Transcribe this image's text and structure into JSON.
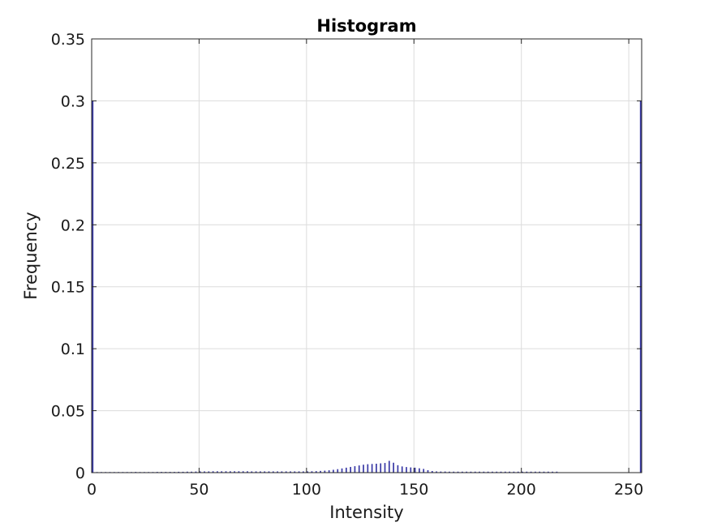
{
  "chart_data": {
    "type": "bar",
    "title": "Histogram",
    "xlabel": "Intensity",
    "ylabel": "Frequency",
    "xlim": [
      0,
      256
    ],
    "ylim": [
      0,
      0.35
    ],
    "xticks": [
      0,
      50,
      100,
      150,
      200,
      250
    ],
    "xtick_labels": [
      "0",
      "50",
      "100",
      "150",
      "200",
      "250"
    ],
    "yticks": [
      0,
      0.05,
      0.1,
      0.15,
      0.2,
      0.25,
      0.3,
      0.35
    ],
    "ytick_labels": [
      "0",
      "0.05",
      "0.1",
      "0.15",
      "0.2",
      "0.25",
      "0.3",
      "0.35"
    ],
    "grid": true,
    "bar_color": "#3a3aa6",
    "x": [
      0,
      2,
      4,
      6,
      8,
      10,
      12,
      14,
      16,
      18,
      20,
      22,
      24,
      26,
      28,
      30,
      32,
      34,
      36,
      38,
      40,
      42,
      44,
      46,
      48,
      50,
      52,
      54,
      56,
      58,
      60,
      62,
      64,
      66,
      68,
      70,
      72,
      74,
      76,
      78,
      80,
      82,
      84,
      86,
      88,
      90,
      92,
      94,
      96,
      98,
      100,
      102,
      104,
      106,
      108,
      110,
      112,
      114,
      116,
      118,
      120,
      122,
      124,
      126,
      128,
      130,
      132,
      134,
      136,
      138,
      140,
      142,
      144,
      146,
      148,
      150,
      152,
      154,
      156,
      158,
      160,
      162,
      164,
      166,
      168,
      170,
      172,
      174,
      176,
      178,
      180,
      182,
      184,
      186,
      188,
      190,
      192,
      194,
      196,
      198,
      200,
      202,
      204,
      206,
      208,
      210,
      212,
      214,
      216,
      255
    ],
    "values": [
      0.3,
      0.0005,
      0.0005,
      0.0005,
      0.0005,
      0.0005,
      0.0005,
      0.0005,
      0.0005,
      0.0005,
      0.0006,
      0.0005,
      0.0005,
      0.0005,
      0.0005,
      0.0006,
      0.0006,
      0.0006,
      0.0006,
      0.0006,
      0.0007,
      0.0007,
      0.0008,
      0.0008,
      0.0009,
      0.001,
      0.001,
      0.001,
      0.0011,
      0.0011,
      0.0011,
      0.0011,
      0.0011,
      0.0011,
      0.0011,
      0.0011,
      0.0011,
      0.001,
      0.001,
      0.001,
      0.001,
      0.001,
      0.001,
      0.001,
      0.001,
      0.001,
      0.001,
      0.001,
      0.001,
      0.001,
      0.001,
      0.0011,
      0.0012,
      0.0014,
      0.0016,
      0.0019,
      0.0023,
      0.0028,
      0.0034,
      0.004,
      0.0046,
      0.0052,
      0.0058,
      0.0064,
      0.0068,
      0.007,
      0.0072,
      0.0075,
      0.0078,
      0.0095,
      0.008,
      0.006,
      0.005,
      0.0045,
      0.0042,
      0.004,
      0.0035,
      0.003,
      0.002,
      0.0013,
      0.001,
      0.0009,
      0.0009,
      0.0008,
      0.0008,
      0.0008,
      0.0008,
      0.0008,
      0.0008,
      0.0008,
      0.0008,
      0.0008,
      0.0008,
      0.0008,
      0.0008,
      0.0008,
      0.0008,
      0.0008,
      0.0008,
      0.0008,
      0.0008,
      0.0008,
      0.0008,
      0.0008,
      0.0008,
      0.0008,
      0.0008,
      0.0008,
      0.0008,
      0.3
    ]
  }
}
